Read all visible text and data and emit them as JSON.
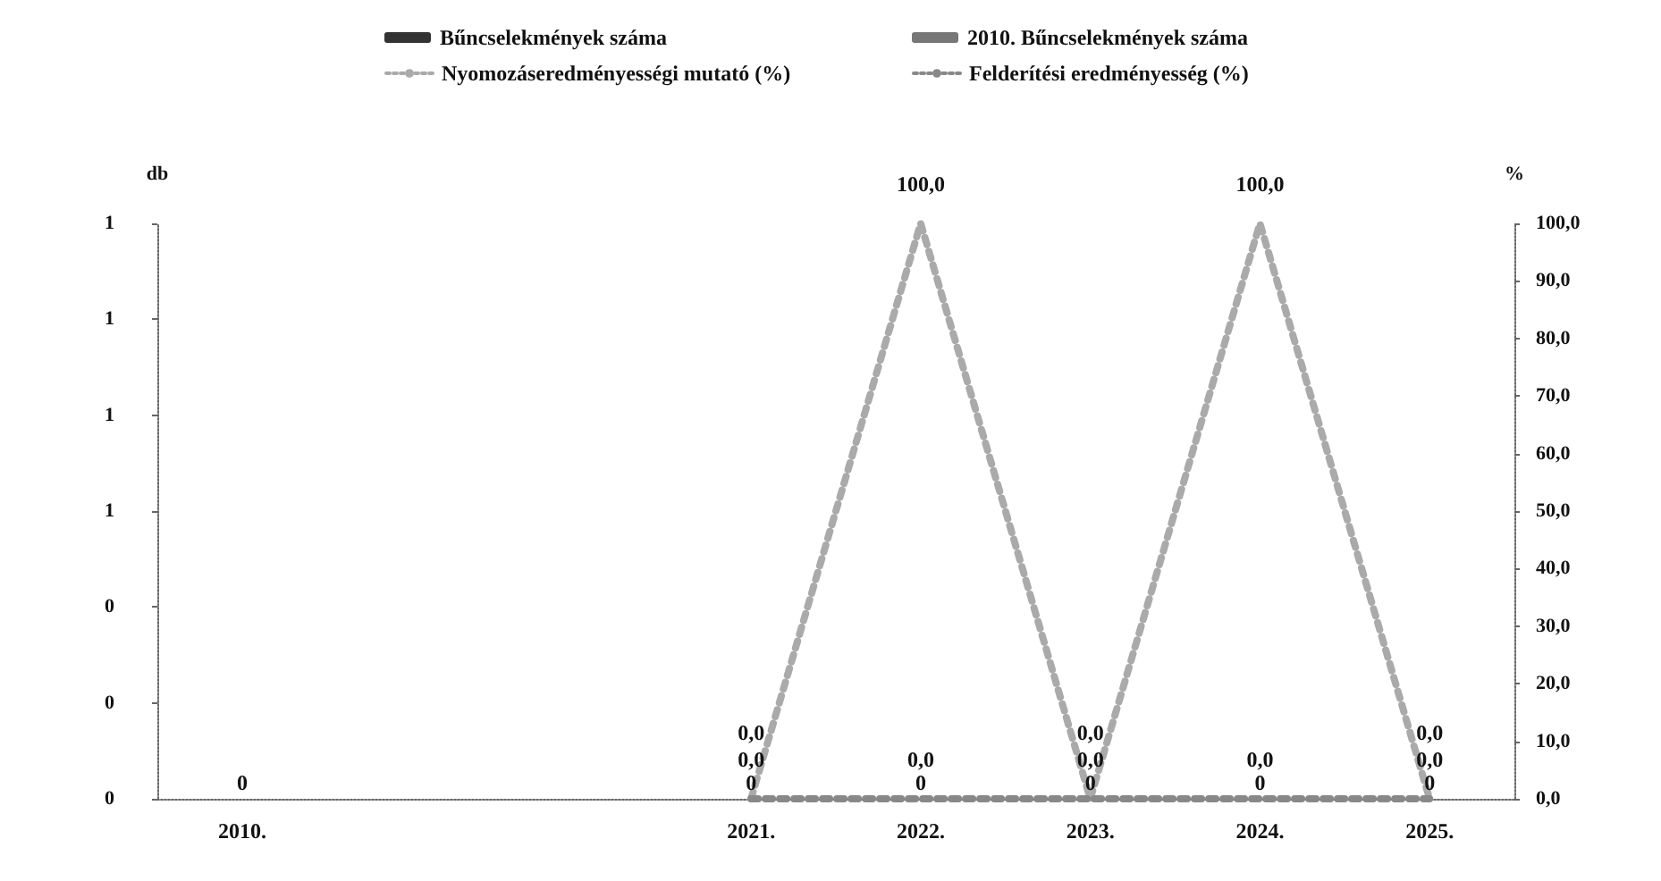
{
  "chart_data": {
    "type": "bar",
    "categories": [
      "2010.",
      null,
      null,
      "2021.",
      "2022.",
      "2023.",
      "2024.",
      "2025."
    ],
    "ylabel": "db",
    "y2label": "%",
    "ylim": [
      0,
      1.2
    ],
    "yticks": [
      0,
      {
        "value": 0.2,
        "label": "0"
      },
      {
        "value": 0.4,
        "label": "0"
      },
      {
        "value": 0.6,
        "label": "1"
      },
      {
        "value": 0.8,
        "label": "1"
      },
      {
        "value": 1,
        "label": "1"
      },
      {
        "value": 1.2,
        "label": "1"
      }
    ],
    "y2lim": [
      0,
      100
    ],
    "y2ticks": [
      {
        "value": 0,
        "label": "0,0"
      },
      {
        "value": 10,
        "label": "10,0"
      },
      {
        "value": 20,
        "label": "20,0"
      },
      {
        "value": 30,
        "label": "30,0"
      },
      {
        "value": 40,
        "label": "40,0"
      },
      {
        "value": 50,
        "label": "50,0"
      },
      {
        "value": 60,
        "label": "60,0"
      },
      {
        "value": 70,
        "label": "70,0"
      },
      {
        "value": 80,
        "label": "80,0"
      },
      {
        "value": 90,
        "label": "90,0"
      },
      {
        "value": 100,
        "label": "100,0"
      }
    ],
    "series": [
      {
        "name": "Bűncselekmények száma",
        "color": "#333333",
        "values": [
          null,
          null,
          null,
          0,
          0,
          0,
          0,
          0
        ],
        "value_labels": [
          null,
          null,
          null,
          "0",
          "0",
          "0",
          "0",
          "0"
        ]
      },
      {
        "name": "2010. Bűncselekmények száma",
        "color": "#777777",
        "values": [
          0,
          null,
          null,
          null,
          null,
          null,
          null,
          null
        ],
        "value_labels": [
          "0",
          null,
          null,
          null,
          null,
          null,
          null,
          null
        ]
      },
      {
        "name": "Nyomozáseredményességi mutató (%)",
        "type": "line",
        "axis": "y2",
        "color": "#aaaaaa",
        "values": [
          null,
          null,
          null,
          0,
          100,
          0,
          100,
          0
        ],
        "value_labels": [
          null,
          null,
          null,
          "0,0",
          "100,0",
          "0,0",
          "100,0",
          "0,0"
        ]
      },
      {
        "name": "Felderítési eredményesség (%)",
        "type": "line",
        "axis": "y2",
        "color": "#888888",
        "values": [
          null,
          null,
          null,
          0,
          0,
          0,
          0,
          0
        ],
        "value_labels": [
          null,
          null,
          null,
          "0,0",
          "0,0",
          "0,0",
          "0,0",
          "0,0"
        ]
      }
    ],
    "grid": false,
    "legend": "top",
    "marker": "none",
    "line_style": "dotted"
  }
}
